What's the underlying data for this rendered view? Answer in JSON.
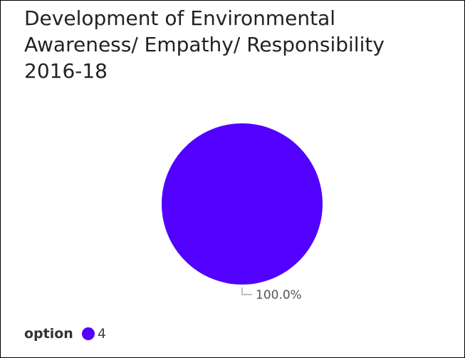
{
  "chart_data": {
    "type": "pie",
    "title_lines": [
      "Development of Environmental",
      "Awareness/ Empathy/ Responsibility",
      "2016-18"
    ],
    "slices": [
      {
        "label": "4",
        "value": 100.0,
        "percent_label": "100.0%",
        "color": "#5200ff"
      }
    ],
    "legend": {
      "title": "option",
      "placement": "bottom-left"
    }
  }
}
